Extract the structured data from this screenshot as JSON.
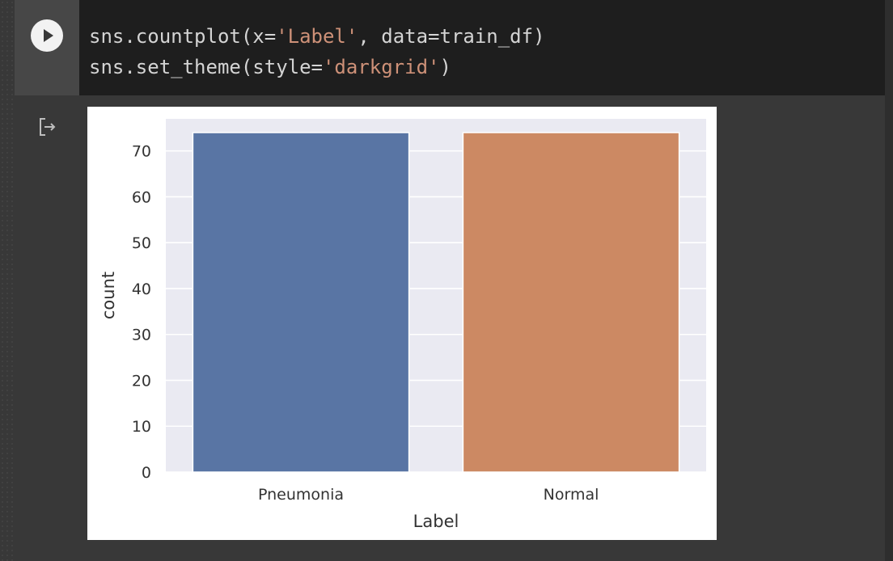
{
  "code": {
    "line1": {
      "before": "sns.countplot(x=",
      "str1": "'Label'",
      "middle": ", data=train_df)"
    },
    "line2": {
      "before": "sns.set_theme(style=",
      "str1": "'darkgrid'",
      "after": ")"
    }
  },
  "icons": {
    "run": "play-icon",
    "output": "output-redirect-icon"
  },
  "colors": {
    "code_bg": "#1e1e1e",
    "string": "#ce9178",
    "bar_pneumonia": "#5975a4",
    "bar_normal": "#cc8963",
    "plot_bg": "#eaeaf2"
  },
  "chart_data": {
    "type": "bar",
    "categories": [
      "Pneumonia",
      "Normal"
    ],
    "values": [
      74,
      74
    ],
    "xlabel": "Label",
    "ylabel": "count",
    "ylim": [
      0,
      77
    ],
    "yticks": [
      0,
      10,
      20,
      30,
      40,
      50,
      60,
      70
    ],
    "grid": true,
    "legend": "none"
  }
}
